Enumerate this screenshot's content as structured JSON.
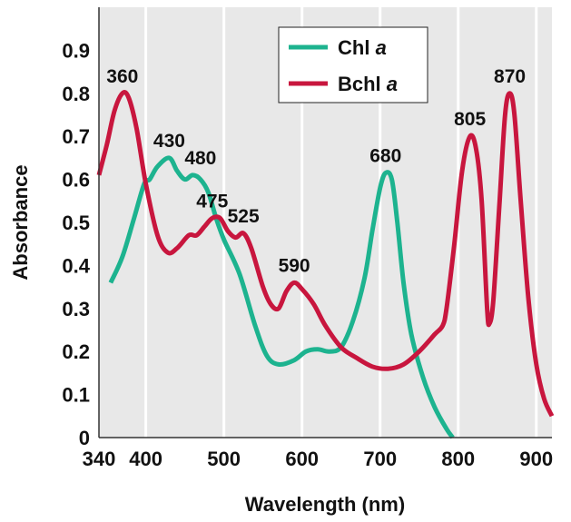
{
  "chart_data": {
    "type": "line",
    "xlabel": "Wavelength (nm)",
    "ylabel": "Absorbance",
    "xlim": [
      340,
      920
    ],
    "ylim": [
      0,
      1.0
    ],
    "x_ticks": [
      340,
      400,
      500,
      600,
      700,
      800,
      900
    ],
    "y_ticks": [
      0,
      0.1,
      0.2,
      0.3,
      0.4,
      0.5,
      0.6,
      0.7,
      0.8,
      0.9
    ],
    "x_tick_labels": [
      "340",
      "400",
      "500",
      "600",
      "700",
      "800",
      "900"
    ],
    "y_tick_labels": [
      "0",
      "0.1",
      "0.2",
      "0.3",
      "0.4",
      "0.5",
      "0.6",
      "0.7",
      "0.8",
      "0.9"
    ],
    "grid": "vertical",
    "legend_position": "top-center",
    "series": [
      {
        "name": "Chl a",
        "name_main": "Chl ",
        "name_italic": "a",
        "color": "#1db38f",
        "points": [
          [
            355,
            0.36
          ],
          [
            370,
            0.42
          ],
          [
            385,
            0.51
          ],
          [
            398,
            0.59
          ],
          [
            405,
            0.6
          ],
          [
            415,
            0.63
          ],
          [
            430,
            0.65
          ],
          [
            440,
            0.62
          ],
          [
            450,
            0.6
          ],
          [
            460,
            0.61
          ],
          [
            470,
            0.6
          ],
          [
            480,
            0.57
          ],
          [
            490,
            0.51
          ],
          [
            500,
            0.46
          ],
          [
            520,
            0.38
          ],
          [
            540,
            0.26
          ],
          [
            555,
            0.19
          ],
          [
            570,
            0.17
          ],
          [
            590,
            0.18
          ],
          [
            605,
            0.2
          ],
          [
            620,
            0.205
          ],
          [
            635,
            0.2
          ],
          [
            650,
            0.21
          ],
          [
            665,
            0.27
          ],
          [
            680,
            0.37
          ],
          [
            690,
            0.48
          ],
          [
            700,
            0.58
          ],
          [
            707,
            0.615
          ],
          [
            715,
            0.6
          ],
          [
            722,
            0.5
          ],
          [
            730,
            0.36
          ],
          [
            740,
            0.24
          ],
          [
            755,
            0.14
          ],
          [
            770,
            0.07
          ],
          [
            785,
            0.02
          ],
          [
            793,
            0.0
          ]
        ]
      },
      {
        "name": "Bchl a",
        "name_main": "Bchl ",
        "name_italic": "a",
        "color": "#c8163e",
        "points": [
          [
            340,
            0.61
          ],
          [
            350,
            0.68
          ],
          [
            360,
            0.76
          ],
          [
            370,
            0.8
          ],
          [
            378,
            0.79
          ],
          [
            388,
            0.72
          ],
          [
            400,
            0.59
          ],
          [
            415,
            0.47
          ],
          [
            428,
            0.43
          ],
          [
            440,
            0.44
          ],
          [
            455,
            0.47
          ],
          [
            465,
            0.47
          ],
          [
            475,
            0.49
          ],
          [
            485,
            0.51
          ],
          [
            495,
            0.51
          ],
          [
            505,
            0.48
          ],
          [
            515,
            0.465
          ],
          [
            525,
            0.475
          ],
          [
            535,
            0.44
          ],
          [
            550,
            0.35
          ],
          [
            560,
            0.31
          ],
          [
            570,
            0.3
          ],
          [
            580,
            0.34
          ],
          [
            590,
            0.36
          ],
          [
            600,
            0.345
          ],
          [
            615,
            0.31
          ],
          [
            630,
            0.26
          ],
          [
            650,
            0.21
          ],
          [
            670,
            0.185
          ],
          [
            690,
            0.165
          ],
          [
            710,
            0.16
          ],
          [
            730,
            0.17
          ],
          [
            750,
            0.2
          ],
          [
            770,
            0.24
          ],
          [
            780,
            0.26
          ],
          [
            785,
            0.3
          ],
          [
            795,
            0.45
          ],
          [
            805,
            0.62
          ],
          [
            815,
            0.7
          ],
          [
            823,
            0.67
          ],
          [
            830,
            0.55
          ],
          [
            837,
            0.3
          ],
          [
            840,
            0.265
          ],
          [
            845,
            0.32
          ],
          [
            853,
            0.55
          ],
          [
            860,
            0.75
          ],
          [
            866,
            0.8
          ],
          [
            872,
            0.75
          ],
          [
            880,
            0.55
          ],
          [
            890,
            0.32
          ],
          [
            900,
            0.17
          ],
          [
            910,
            0.09
          ],
          [
            920,
            0.05
          ]
        ]
      }
    ],
    "annotations": [
      {
        "text": "360",
        "x": 370,
        "y": 0.8
      },
      {
        "text": "430",
        "x": 430,
        "y": 0.65
      },
      {
        "text": "480",
        "x": 470,
        "y": 0.61
      },
      {
        "text": "475",
        "x": 485,
        "y": 0.51
      },
      {
        "text": "525",
        "x": 525,
        "y": 0.475
      },
      {
        "text": "590",
        "x": 590,
        "y": 0.36
      },
      {
        "text": "680",
        "x": 707,
        "y": 0.615
      },
      {
        "text": "805",
        "x": 815,
        "y": 0.7
      },
      {
        "text": "870",
        "x": 866,
        "y": 0.8
      }
    ]
  }
}
